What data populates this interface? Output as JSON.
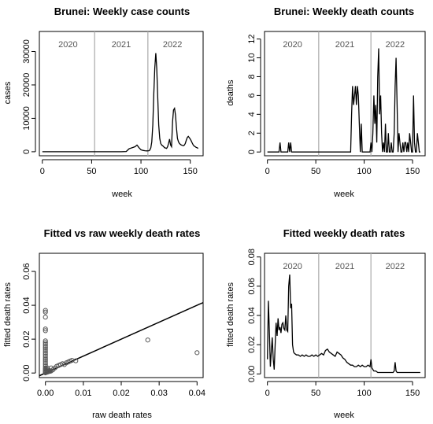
{
  "chart_data": [
    {
      "type": "line",
      "title": "Brunei: Weekly case counts",
      "xlabel": "week",
      "ylabel": "cases",
      "xlim": [
        -3,
        163
      ],
      "ylim": [
        -1200,
        36000
      ],
      "xticks": [
        0,
        50,
        100,
        150
      ],
      "yticks": [
        0,
        10000,
        20000,
        30000
      ],
      "vlines": [
        53,
        107
      ],
      "year_labels": [
        {
          "text": "2020",
          "x": 26
        },
        {
          "text": "2021",
          "x": 80
        },
        {
          "text": "2022",
          "x": 132
        }
      ],
      "series": [
        {
          "x": [
            0,
            10,
            20,
            30,
            40,
            50,
            60,
            70,
            80,
            85,
            88,
            90,
            92,
            94,
            96,
            98,
            100,
            102,
            104,
            106,
            108,
            109,
            110,
            111,
            112,
            113,
            114,
            115,
            116,
            117,
            118,
            119,
            120,
            121,
            122,
            123,
            124,
            125,
            126,
            127,
            128,
            129,
            130,
            131,
            132,
            133,
            134,
            135,
            136,
            137,
            138,
            139,
            140,
            141,
            142,
            143,
            144,
            145,
            146,
            147,
            148,
            149,
            150,
            151,
            152,
            153,
            154,
            155,
            156,
            157,
            158
          ],
          "y": [
            0,
            0,
            0,
            0,
            0,
            0,
            0,
            0,
            10,
            80,
            900,
            1100,
            1300,
            1500,
            2000,
            1200,
            600,
            400,
            300,
            250,
            300,
            500,
            1200,
            3000,
            8000,
            17000,
            25000,
            29500,
            25000,
            16000,
            8000,
            4000,
            2500,
            2000,
            1800,
            1500,
            1200,
            1100,
            1000,
            1500,
            2500,
            3800,
            2000,
            1500,
            9000,
            12500,
            13000,
            11000,
            7000,
            4000,
            3000,
            2500,
            2200,
            2000,
            1900,
            1800,
            2000,
            2500,
            3500,
            4300,
            4600,
            4200,
            3800,
            3200,
            2600,
            2000,
            1700,
            1500,
            1300,
            1200,
            1000
          ]
        }
      ]
    },
    {
      "type": "line",
      "title": "Brunei: Weekly death counts",
      "xlabel": "week",
      "ylabel": "deaths",
      "xlim": [
        -3,
        163
      ],
      "ylim": [
        -0.4,
        12.8
      ],
      "xticks": [
        0,
        50,
        100,
        150
      ],
      "yticks": [
        0,
        2,
        4,
        6,
        8,
        10,
        12
      ],
      "vlines": [
        53,
        107
      ],
      "year_labels": [
        {
          "text": "2020",
          "x": 26
        },
        {
          "text": "2021",
          "x": 80
        },
        {
          "text": "2022",
          "x": 132
        }
      ],
      "series": [
        {
          "x": [
            0,
            12,
            13,
            14,
            21,
            22,
            23,
            24,
            25,
            26,
            40,
            86,
            87,
            88,
            89,
            90,
            91,
            92,
            93,
            94,
            95,
            96,
            97,
            98,
            99,
            100,
            105,
            106,
            107,
            108,
            109,
            110,
            111,
            112,
            113,
            114,
            115,
            116,
            117,
            118,
            119,
            120,
            121,
            122,
            123,
            124,
            125,
            126,
            127,
            128,
            129,
            130,
            131,
            132,
            133,
            134,
            135,
            136,
            137,
            138,
            139,
            140,
            141,
            142,
            143,
            144,
            145,
            146,
            147,
            148,
            149,
            150,
            151,
            152,
            153,
            154,
            155,
            156,
            157,
            158
          ],
          "y": [
            0,
            0,
            1,
            0,
            0,
            1,
            0,
            1,
            0,
            0,
            0,
            0,
            4,
            7,
            5,
            6,
            7,
            5,
            7,
            6,
            3,
            0,
            3,
            0,
            0,
            0,
            0,
            0,
            1,
            0,
            2,
            6,
            3,
            5,
            1,
            8,
            11,
            4,
            6,
            2,
            0,
            1,
            0,
            3,
            0,
            0,
            2,
            0,
            0,
            1,
            0,
            0,
            2,
            7,
            10,
            5,
            0,
            2,
            1,
            0,
            0,
            1,
            0,
            1,
            1,
            0,
            1,
            0,
            2,
            1,
            0,
            0,
            6,
            1,
            0,
            0,
            2,
            1,
            0,
            0
          ]
        }
      ]
    },
    {
      "type": "scatter",
      "title": "Fitted vs raw weekly death rates",
      "xlabel": "raw death rates",
      "ylabel": "fitted death rates",
      "xlim": [
        -0.0016,
        0.0416
      ],
      "ylim": [
        -0.0027,
        0.0707
      ],
      "xticks": [
        0.0,
        0.01,
        0.02,
        0.03,
        0.04
      ],
      "ytick_values": [
        0.0,
        0.02,
        0.04,
        0.06
      ],
      "ytick_labels": [
        "0.00",
        "0.02",
        "0.04",
        "0.06"
      ],
      "xtick_labels": [
        "0.00",
        "0.01",
        "0.02",
        "0.03",
        "0.04"
      ],
      "points": {
        "x": [
          0.0,
          0.0,
          0.0,
          0.0,
          0.0,
          0.0,
          0.0,
          0.0,
          0.0,
          0.0,
          0.0,
          0.0,
          0.0,
          0.0,
          0.0,
          0.0,
          0.0,
          0.0,
          0.0,
          0.0,
          0.0,
          0.0,
          0.0,
          0.0,
          0.0,
          0.0,
          0.0,
          0.0,
          0.0,
          0.0,
          0.0005,
          0.0007,
          0.001,
          0.0012,
          0.0015,
          0.002,
          0.0025,
          0.003,
          0.0035,
          0.004,
          0.0045,
          0.005,
          0.0055,
          0.006,
          0.0065,
          0.007,
          0.008,
          0.0005,
          0.0008,
          0.001,
          0.0015,
          0.027,
          0.04
        ],
        "y": [
          0.037,
          0.036,
          0.033,
          0.026,
          0.025,
          0.019,
          0.018,
          0.017,
          0.016,
          0.015,
          0.014,
          0.013,
          0.012,
          0.011,
          0.01,
          0.009,
          0.008,
          0.007,
          0.006,
          0.005,
          0.004,
          0.003,
          0.0025,
          0.002,
          0.0015,
          0.001,
          0.0008,
          0.0005,
          0.0003,
          0.0001,
          0.003,
          0.002,
          0.0015,
          0.001,
          0.003,
          0.002,
          0.003,
          0.004,
          0.0045,
          0.005,
          0.0055,
          0.005,
          0.006,
          0.0065,
          0.007,
          0.0075,
          0.0072,
          0.0005,
          0.0008,
          0.001,
          0.0012,
          0.0195,
          0.012
        ]
      },
      "reference_line": {
        "slope": 1,
        "intercept": 0
      }
    },
    {
      "type": "line",
      "title": "Fitted weekly death rates",
      "xlabel": "week",
      "ylabel": "fitted death rates",
      "xlim": [
        -3,
        163
      ],
      "ylim": [
        -0.0025,
        0.0825
      ],
      "xticks": [
        0,
        50,
        100,
        150
      ],
      "ytick_values": [
        0.0,
        0.02,
        0.04,
        0.06,
        0.08
      ],
      "ytick_labels": [
        "0.00",
        "0.02",
        "0.04",
        "0.06",
        "0.08"
      ],
      "vlines": [
        53,
        107
      ],
      "year_labels": [
        {
          "text": "2020",
          "x": 26
        },
        {
          "text": "2021",
          "x": 80
        },
        {
          "text": "2022",
          "x": 132
        }
      ],
      "series": [
        {
          "x": [
            0,
            1,
            2,
            3,
            4,
            5,
            6,
            7,
            8,
            9,
            10,
            11,
            12,
            13,
            14,
            15,
            16,
            17,
            18,
            19,
            20,
            21,
            22,
            23,
            24,
            25,
            26,
            27,
            28,
            30,
            32,
            34,
            36,
            38,
            40,
            42,
            44,
            46,
            48,
            50,
            52,
            54,
            56,
            58,
            60,
            62,
            64,
            66,
            68,
            70,
            72,
            74,
            76,
            78,
            80,
            82,
            84,
            86,
            88,
            90,
            92,
            94,
            96,
            98,
            100,
            102,
            104,
            106,
            107,
            108,
            110,
            112,
            114,
            116,
            118,
            120,
            122,
            124,
            126,
            128,
            130,
            131,
            132,
            133,
            134,
            136,
            138,
            140,
            142,
            144,
            146,
            148,
            150,
            152,
            154,
            156,
            158
          ],
          "y": [
            0.01,
            0.05,
            0.03,
            0.005,
            0.015,
            0.025,
            0.01,
            0.003,
            0.02,
            0.035,
            0.026,
            0.038,
            0.03,
            0.032,
            0.028,
            0.034,
            0.035,
            0.031,
            0.03,
            0.04,
            0.03,
            0.029,
            0.06,
            0.068,
            0.045,
            0.048,
            0.02,
            0.015,
            0.014,
            0.013,
            0.013,
            0.012,
            0.013,
            0.012,
            0.013,
            0.012,
            0.012,
            0.013,
            0.012,
            0.013,
            0.012,
            0.013,
            0.014,
            0.013,
            0.016,
            0.017,
            0.015,
            0.014,
            0.013,
            0.012,
            0.015,
            0.014,
            0.013,
            0.011,
            0.01,
            0.008,
            0.007,
            0.006,
            0.006,
            0.005,
            0.005,
            0.006,
            0.005,
            0.006,
            0.005,
            0.005,
            0.006,
            0.005,
            0.01,
            0.004,
            0.002,
            0.002,
            0.001,
            0.001,
            0.001,
            0.001,
            0.001,
            0.001,
            0.001,
            0.001,
            0.001,
            0.002,
            0.008,
            0.002,
            0.001,
            0.001,
            0.001,
            0.001,
            0.001,
            0.001,
            0.001,
            0.001,
            0.001,
            0.001,
            0.001,
            0.001,
            0.001
          ]
        }
      ]
    }
  ]
}
